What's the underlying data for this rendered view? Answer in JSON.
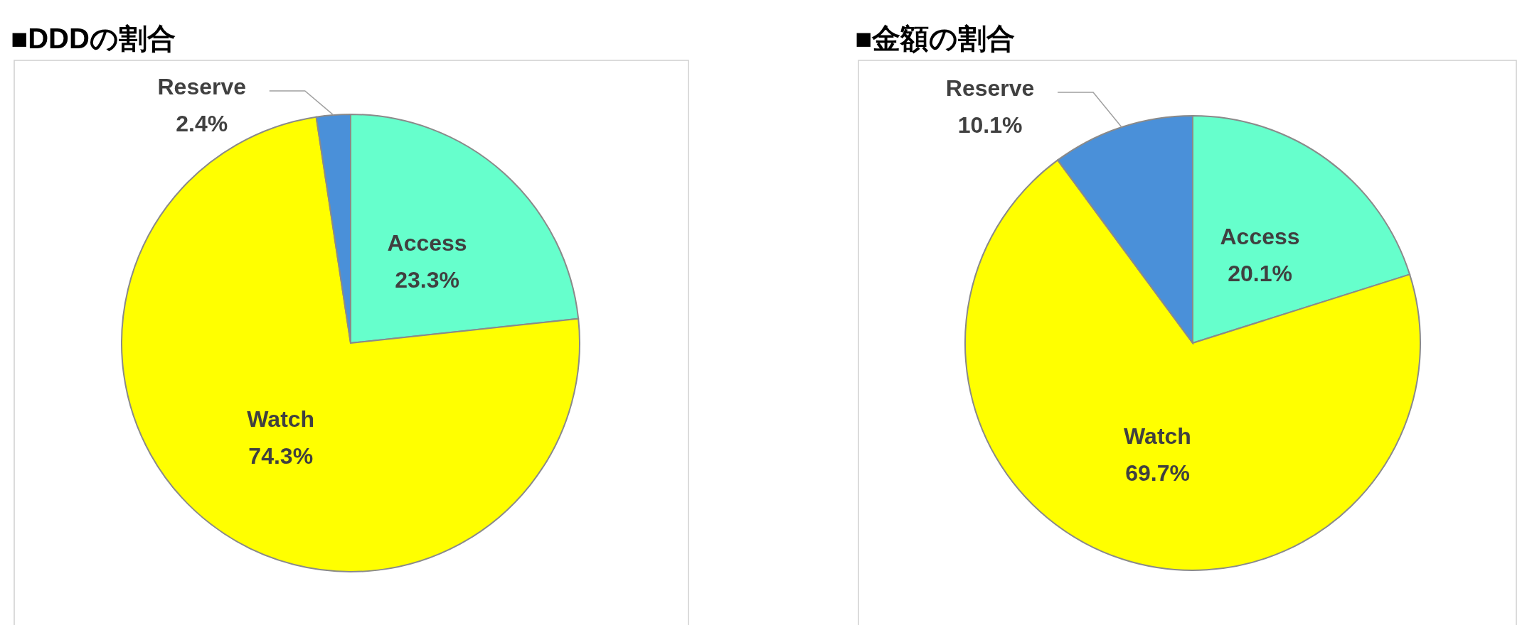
{
  "chart_data": [
    {
      "type": "pie",
      "title": "■DDDの割合",
      "categories": [
        "Access",
        "Watch",
        "Reserve"
      ],
      "values": [
        23.3,
        74.3,
        2.4
      ],
      "value_labels": [
        "23.3%",
        "74.3%",
        "2.4%"
      ],
      "colors": [
        "#66ffcc",
        "#ffff00",
        "#4a90d9"
      ]
    },
    {
      "type": "pie",
      "title": "■金額の割合",
      "categories": [
        "Access",
        "Watch",
        "Reserve"
      ],
      "values": [
        20.1,
        69.7,
        10.1
      ],
      "value_labels": [
        "20.1%",
        "69.7%",
        "10.1%"
      ],
      "colors": [
        "#66ffcc",
        "#ffff00",
        "#4a90d9"
      ]
    }
  ]
}
